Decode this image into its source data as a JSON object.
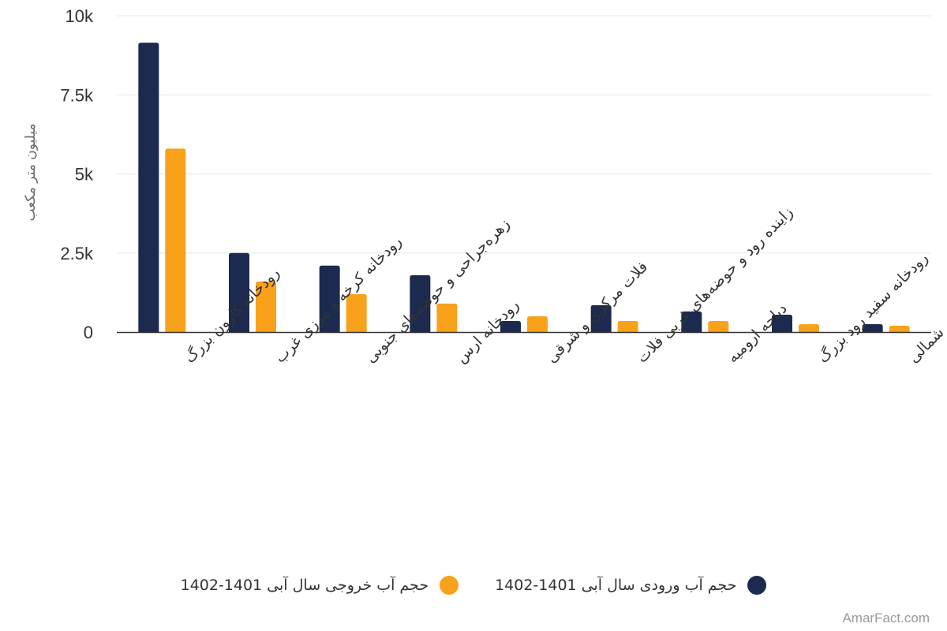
{
  "chart_data": {
    "type": "bar",
    "ylabel": "میلیون متر مکعب",
    "ylim": [
      0,
      10000
    ],
    "yticks": [
      {
        "value": 0,
        "label": "0"
      },
      {
        "value": 2500,
        "label": "2.5k"
      },
      {
        "value": 5000,
        "label": "5k"
      },
      {
        "value": 7500,
        "label": "7.5k"
      },
      {
        "value": 10000,
        "label": "10k"
      }
    ],
    "grid": true,
    "legend_position": "bottom",
    "categories": [
      "رودخانه کارون بزرگ",
      "رودخانه کرخه و مرزی غرب",
      "زهره‌جراحی و حوضه‌های جنوبی",
      "رودخانه ارس",
      "فلات مرکزی و شرقی",
      "زاینده رود و حوضه‌های غربی فلات",
      "دیاچه ارومیه",
      "رودخانه سفید رود بزرگ",
      "اترک و حوضه‌های شمالی"
    ],
    "series": [
      {
        "name": "حجم آب ورودی سال آبی 1401-1402",
        "color": "#1b2a4e",
        "values": [
          9150,
          2500,
          2100,
          1800,
          350,
          850,
          650,
          550,
          250
        ]
      },
      {
        "name": "حجم آب خروجی سال آبی 1401-1402",
        "color": "#f8a21b",
        "values": [
          5800,
          1600,
          1200,
          900,
          500,
          350,
          350,
          250,
          200
        ]
      }
    ]
  },
  "credit": "AmarFact.com"
}
